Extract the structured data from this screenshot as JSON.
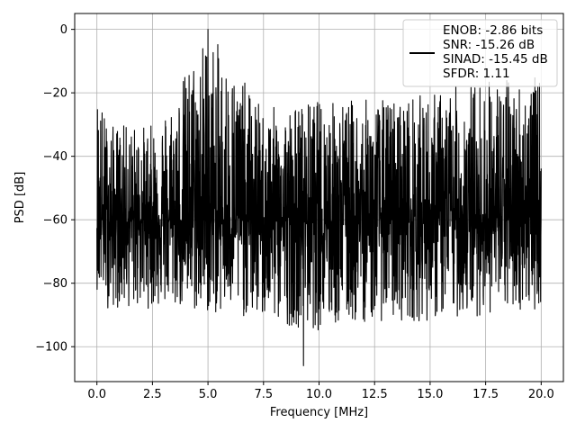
{
  "chart_data": {
    "type": "line",
    "title": "",
    "xlabel": "Frequency [MHz]",
    "ylabel": "PSD [dB]",
    "xlim": [
      -1.0,
      21.0
    ],
    "ylim": [
      -111,
      5
    ],
    "x_ticks": [
      0.0,
      2.5,
      5.0,
      7.5,
      10.0,
      12.5,
      15.0,
      17.5,
      20.0
    ],
    "x_tick_labels": [
      "0.0",
      "2.5",
      "5.0",
      "7.5",
      "10.0",
      "12.5",
      "15.0",
      "17.5",
      "20.0"
    ],
    "y_ticks": [
      0,
      -20,
      -40,
      -60,
      -80,
      -100
    ],
    "y_tick_labels": [
      "0",
      "−20",
      "−40",
      "−60",
      "−80",
      "−100"
    ],
    "grid": true,
    "legend_position": "top-right",
    "legend_entries": [
      "ENOB: -2.86 bits",
      "SNR: -15.26 dB",
      "SINAD: -15.45 dB",
      "SFDR: 1.11"
    ],
    "series": [
      {
        "color": "#000000",
        "x_range": [
          0.0,
          20.0
        ],
        "noise_floor_db": -60,
        "peak_db": 0,
        "peak_x": 5.0,
        "min_db": -106,
        "min_x": 9.3,
        "approx_envelope": {
          "x": [
            0.0,
            0.5,
            1.0,
            2.5,
            3.5,
            4.5,
            5.0,
            6.0,
            7.5,
            10.0,
            12.5,
            15.0,
            17.5,
            20.0
          ],
          "upper": [
            -17,
            -30,
            -30,
            -30,
            -20,
            -5,
            0,
            -10,
            -25,
            -22,
            -22,
            -20,
            -15,
            -15
          ],
          "lower": [
            -82,
            -88,
            -88,
            -88,
            -88,
            -90,
            -90,
            -90,
            -92,
            -95,
            -92,
            -92,
            -90,
            -88
          ]
        }
      }
    ]
  }
}
